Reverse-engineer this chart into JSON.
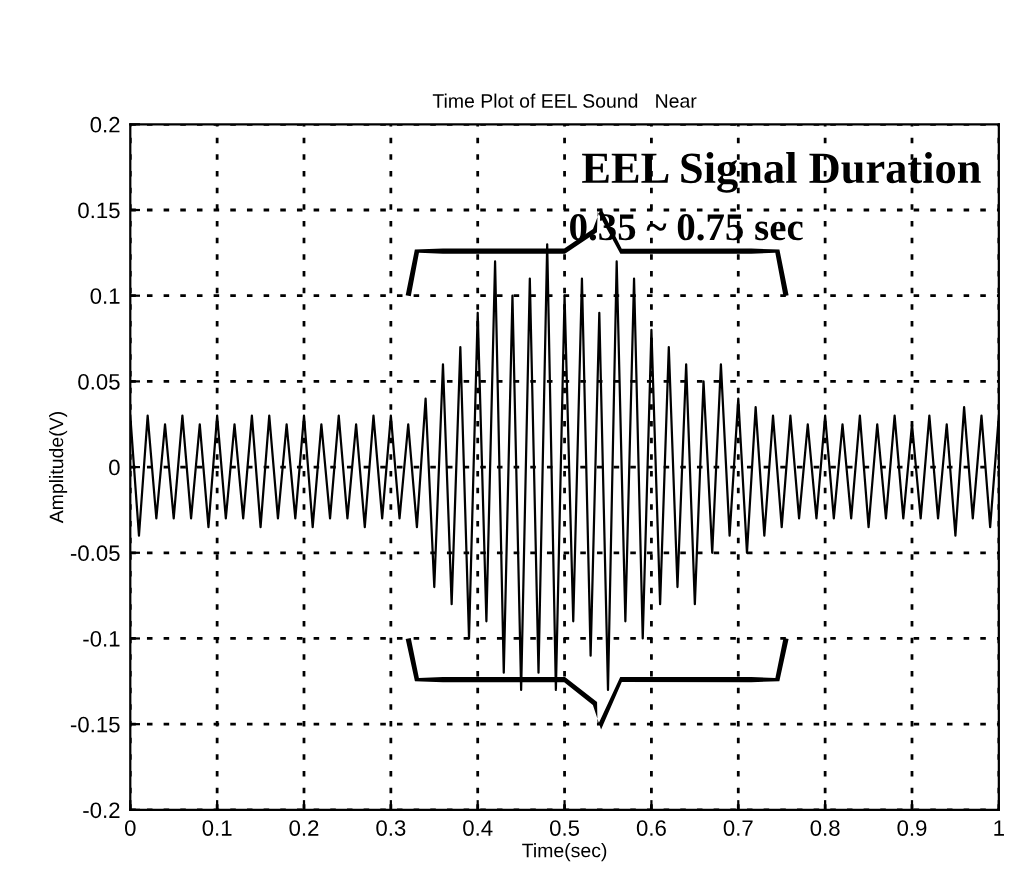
{
  "chart_data": {
    "type": "line",
    "title": "Time Plot of EEL Sound   Near",
    "xlabel": "Time(sec)",
    "ylabel": "Amplitude(V)",
    "x": [
      0,
      0.01,
      0.02,
      0.03,
      0.04,
      0.05,
      0.06,
      0.07,
      0.08,
      0.09,
      0.1,
      0.11,
      0.12,
      0.13,
      0.14,
      0.15,
      0.16,
      0.17,
      0.18,
      0.19,
      0.2,
      0.21,
      0.22,
      0.23,
      0.24,
      0.25,
      0.26,
      0.27,
      0.28,
      0.29,
      0.3,
      0.31,
      0.32,
      0.33,
      0.34,
      0.35,
      0.36,
      0.37,
      0.38,
      0.39,
      0.4,
      0.41,
      0.42,
      0.43,
      0.44,
      0.45,
      0.46,
      0.47,
      0.48,
      0.49,
      0.5,
      0.51,
      0.52,
      0.53,
      0.54,
      0.55,
      0.56,
      0.57,
      0.58,
      0.59,
      0.6,
      0.61,
      0.62,
      0.63,
      0.64,
      0.65,
      0.66,
      0.67,
      0.68,
      0.69,
      0.7,
      0.71,
      0.72,
      0.73,
      0.74,
      0.75,
      0.76,
      0.77,
      0.78,
      0.79,
      0.8,
      0.81,
      0.82,
      0.83,
      0.84,
      0.85,
      0.86,
      0.87,
      0.88,
      0.89,
      0.9,
      0.91,
      0.92,
      0.93,
      0.94,
      0.95,
      0.96,
      0.97,
      0.98,
      0.99,
      1
    ],
    "series": [
      {
        "color": "#000000",
        "values": [
          0.03,
          -0.04,
          0.03,
          -0.03,
          0.025,
          -0.03,
          0.03,
          -0.03,
          0.025,
          -0.035,
          0.03,
          -0.03,
          0.025,
          -0.03,
          0.03,
          -0.035,
          0.03,
          -0.03,
          0.025,
          -0.03,
          0.03,
          -0.035,
          0.025,
          -0.03,
          0.03,
          -0.03,
          0.025,
          -0.035,
          0.03,
          -0.03,
          0.03,
          -0.03,
          0.025,
          -0.035,
          0.04,
          -0.07,
          0.06,
          -0.08,
          0.07,
          -0.1,
          0.09,
          -0.09,
          0.12,
          -0.12,
          0.1,
          -0.13,
          0.11,
          -0.12,
          0.13,
          -0.13,
          0.1,
          -0.09,
          0.11,
          -0.11,
          0.09,
          -0.13,
          0.12,
          -0.09,
          0.11,
          -0.1,
          0.08,
          -0.08,
          0.07,
          -0.07,
          0.06,
          -0.08,
          0.05,
          -0.05,
          0.06,
          -0.04,
          0.04,
          -0.05,
          0.035,
          -0.04,
          0.03,
          -0.035,
          0.03,
          -0.03,
          0.025,
          -0.03,
          0.03,
          -0.03,
          0.025,
          -0.03,
          0.03,
          -0.035,
          0.025,
          -0.03,
          0.03,
          -0.03,
          0.025,
          -0.03,
          0.03,
          -0.03,
          0.025,
          -0.04,
          0.035,
          -0.03,
          0.03,
          -0.035,
          0.03
        ]
      }
    ],
    "xlim": [
      0,
      1
    ],
    "ylim": [
      -0.2,
      0.2
    ],
    "xticks": [
      0,
      0.1,
      0.2,
      0.3,
      0.4,
      0.5,
      0.6,
      0.7,
      0.8,
      0.9,
      1
    ],
    "yticks": [
      -0.2,
      -0.15,
      -0.1,
      -0.05,
      0,
      0.05,
      0.1,
      0.15,
      0.2
    ],
    "grid": true,
    "line_style": "solid",
    "marker": "none",
    "annotations": [
      "EEL Signal Duration",
      "0.35 ~ 0.75 sec"
    ]
  }
}
